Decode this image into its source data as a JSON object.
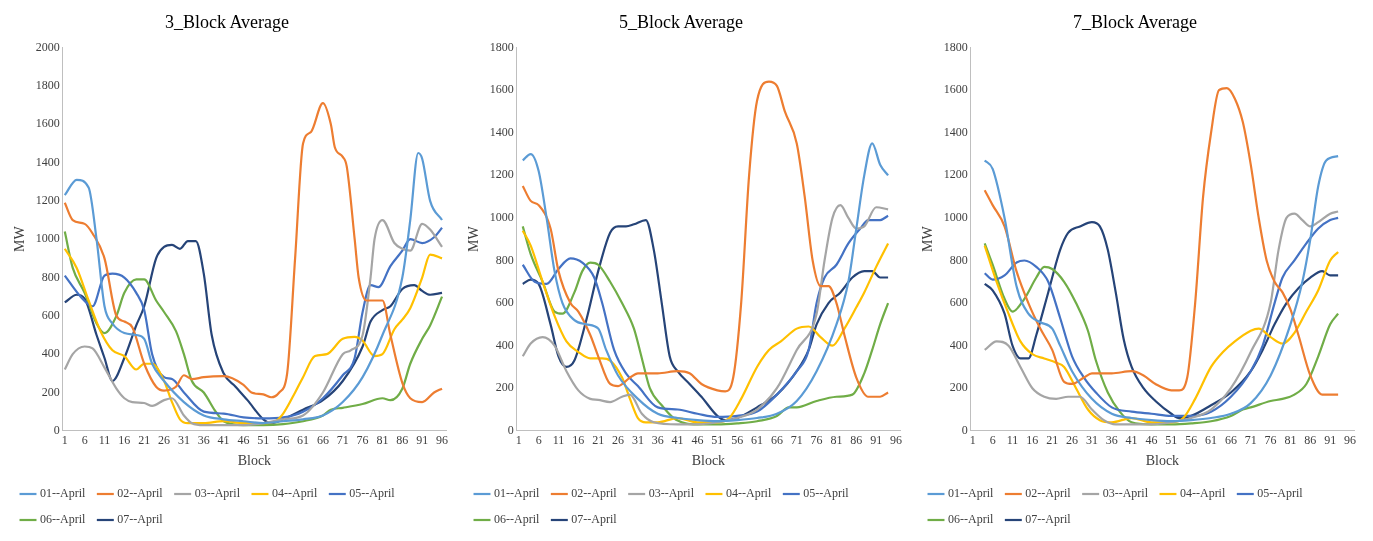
{
  "chart_data": [
    {
      "type": "line",
      "title": "3_Block Average",
      "xlabel": "Block",
      "ylabel": "MW",
      "xlim": [
        0.5,
        97
      ],
      "xticks": [
        1,
        6,
        11,
        16,
        21,
        26,
        31,
        36,
        41,
        46,
        51,
        56,
        61,
        66,
        71,
        76,
        81,
        86,
        91,
        96
      ],
      "ylim": [
        0,
        2000
      ],
      "yticks": [
        0,
        200,
        400,
        600,
        800,
        1000,
        1200,
        1400,
        1600,
        1800,
        2000
      ],
      "grid": false,
      "legend": "bottom",
      "marker": "none",
      "line_style": "solid",
      "series": [
        {
          "name": "01--April",
          "color": "#5b9bd5",
          "x": [
            1,
            4,
            7,
            9,
            11,
            13,
            16,
            19,
            21,
            23,
            26,
            31,
            36,
            41,
            46,
            51,
            56,
            61,
            66,
            71,
            76,
            81,
            86,
            88,
            90,
            91,
            93,
            96
          ],
          "values": [
            1230,
            1310,
            1270,
            1000,
            650,
            560,
            510,
            500,
            480,
            350,
            260,
            150,
            80,
            60,
            50,
            40,
            50,
            60,
            80,
            150,
            280,
            500,
            800,
            1100,
            1450,
            1420,
            1200,
            1100
          ]
        },
        {
          "name": "02--April",
          "color": "#ed7d31",
          "x": [
            1,
            3,
            6,
            8,
            11,
            14,
            16,
            18,
            21,
            24,
            26,
            29,
            31,
            33,
            36,
            41,
            46,
            48,
            51,
            53,
            55,
            57,
            59,
            61,
            63,
            66,
            68,
            69,
            71,
            72,
            74,
            75,
            77,
            79,
            81,
            83,
            86,
            88,
            91,
            94,
            96
          ],
          "values": [
            1190,
            1100,
            1080,
            1030,
            900,
            600,
            570,
            540,
            350,
            230,
            210,
            230,
            290,
            270,
            280,
            285,
            240,
            200,
            190,
            175,
            200,
            300,
            900,
            1500,
            1560,
            1710,
            1600,
            1480,
            1430,
            1380,
            1000,
            800,
            680,
            680,
            680,
            500,
            250,
            170,
            150,
            200,
            220
          ]
        },
        {
          "name": "03--April",
          "color": "#a5a5a5",
          "x": [
            1,
            3,
            6,
            8,
            11,
            14,
            16,
            18,
            21,
            23,
            26,
            28,
            31,
            33,
            36,
            41,
            46,
            51,
            56,
            61,
            66,
            71,
            73,
            76,
            78,
            79,
            81,
            84,
            86,
            88,
            91,
            93,
            96
          ],
          "values": [
            320,
            400,
            440,
            430,
            330,
            220,
            170,
            150,
            145,
            130,
            160,
            170,
            80,
            40,
            30,
            30,
            30,
            40,
            60,
            80,
            200,
            400,
            420,
            500,
            800,
            1000,
            1100,
            980,
            950,
            940,
            1080,
            1050,
            960
          ]
        },
        {
          "name": "04--April",
          "color": "#ffc000",
          "x": [
            1,
            4,
            7,
            10,
            13,
            16,
            19,
            21,
            23,
            26,
            28,
            30,
            32,
            36,
            41,
            46,
            51,
            54,
            56,
            59,
            61,
            64,
            67,
            71,
            74,
            76,
            79,
            81,
            84,
            86,
            88,
            91,
            93,
            96
          ],
          "values": [
            950,
            850,
            680,
            520,
            420,
            390,
            320,
            350,
            350,
            260,
            150,
            60,
            40,
            40,
            50,
            40,
            40,
            50,
            90,
            200,
            280,
            390,
            400,
            480,
            490,
            470,
            390,
            400,
            530,
            580,
            640,
            800,
            920,
            900
          ]
        },
        {
          "name": "05--April",
          "color": "#4472c4",
          "x": [
            1,
            5,
            8,
            11,
            13,
            16,
            19,
            21,
            23,
            26,
            28,
            31,
            36,
            41,
            46,
            51,
            56,
            61,
            66,
            71,
            74,
            76,
            78,
            80,
            83,
            86,
            88,
            91,
            94,
            96
          ],
          "values": [
            810,
            700,
            650,
            810,
            820,
            800,
            720,
            630,
            400,
            280,
            270,
            200,
            100,
            90,
            70,
            65,
            70,
            100,
            170,
            290,
            380,
            620,
            760,
            750,
            860,
            940,
            1000,
            980,
            1010,
            1060
          ]
        },
        {
          "name": "06--April",
          "color": "#70ad47",
          "x": [
            1,
            3,
            6,
            9,
            11,
            14,
            16,
            19,
            21,
            24,
            26,
            29,
            31,
            33,
            36,
            39,
            41,
            46,
            51,
            56,
            61,
            66,
            68,
            71,
            76,
            81,
            83,
            86,
            88,
            91,
            93,
            96
          ],
          "values": [
            1040,
            850,
            720,
            560,
            510,
            600,
            720,
            790,
            790,
            680,
            620,
            520,
            400,
            260,
            200,
            100,
            50,
            30,
            30,
            35,
            50,
            80,
            110,
            120,
            140,
            170,
            160,
            220,
            350,
            480,
            550,
            700
          ]
        },
        {
          "name": "07--April",
          "color": "#264478",
          "x": [
            1,
            4,
            6,
            9,
            11,
            13,
            16,
            19,
            21,
            24,
            26,
            28,
            30,
            32,
            34,
            36,
            38,
            41,
            44,
            47,
            51,
            53,
            56,
            61,
            66,
            71,
            76,
            78,
            81,
            83,
            86,
            89,
            91,
            93,
            96
          ],
          "values": [
            670,
            710,
            690,
            500,
            380,
            260,
            380,
            550,
            650,
            900,
            960,
            970,
            950,
            990,
            990,
            820,
            500,
            300,
            230,
            160,
            60,
            40,
            60,
            110,
            160,
            260,
            440,
            570,
            630,
            650,
            740,
            760,
            730,
            710,
            720
          ]
        }
      ]
    },
    {
      "type": "line",
      "title": "5_Block Average",
      "xlabel": "Block",
      "ylabel": "MW",
      "xlim": [
        0.5,
        97
      ],
      "xticks": [
        1,
        6,
        11,
        16,
        21,
        26,
        31,
        36,
        41,
        46,
        51,
        56,
        61,
        66,
        71,
        76,
        81,
        86,
        91,
        96
      ],
      "ylim": [
        0,
        1800
      ],
      "yticks": [
        0,
        200,
        400,
        600,
        800,
        1000,
        1200,
        1400,
        1600,
        1800
      ],
      "grid": false,
      "legend": "bottom",
      "marker": "none",
      "line_style": "solid",
      "series": [
        {
          "name": "01--April",
          "color": "#5b9bd5",
          "x": [
            2,
            4,
            6,
            8,
            10,
            12,
            15,
            18,
            21,
            23,
            26,
            31,
            36,
            41,
            46,
            51,
            56,
            61,
            66,
            71,
            76,
            81,
            84,
            86,
            88,
            90,
            92,
            94
          ],
          "values": [
            1270,
            1300,
            1220,
            1000,
            750,
            600,
            520,
            500,
            480,
            380,
            260,
            150,
            80,
            60,
            50,
            45,
            50,
            60,
            80,
            140,
            280,
            500,
            700,
            950,
            1200,
            1350,
            1250,
            1200
          ]
        },
        {
          "name": "02--April",
          "color": "#ed7d31",
          "x": [
            2,
            4,
            6,
            9,
            11,
            14,
            16,
            19,
            21,
            24,
            26,
            29,
            31,
            36,
            41,
            44,
            47,
            51,
            53,
            55,
            57,
            59,
            61,
            64,
            66,
            68,
            71,
            73,
            75,
            77,
            79,
            81,
            83,
            86,
            89,
            92,
            94
          ],
          "values": [
            1150,
            1080,
            1060,
            950,
            750,
            600,
            560,
            450,
            350,
            220,
            210,
            250,
            270,
            270,
            280,
            270,
            220,
            190,
            185,
            250,
            600,
            1200,
            1550,
            1640,
            1620,
            1500,
            1350,
            1100,
            800,
            680,
            680,
            600,
            450,
            250,
            160,
            160,
            180
          ]
        },
        {
          "name": "03--April",
          "color": "#a5a5a5",
          "x": [
            2,
            4,
            7,
            10,
            13,
            16,
            19,
            21,
            24,
            27,
            29,
            32,
            35,
            41,
            46,
            51,
            56,
            61,
            66,
            71,
            76,
            78,
            80,
            82,
            84,
            86,
            88,
            91,
            94
          ],
          "values": [
            350,
            410,
            440,
            400,
            280,
            190,
            150,
            145,
            135,
            160,
            170,
            80,
            40,
            30,
            30,
            40,
            60,
            100,
            200,
            380,
            550,
            800,
            1000,
            1060,
            1000,
            950,
            960,
            1050,
            1040
          ]
        },
        {
          "name": "04--April",
          "color": "#ffc000",
          "x": [
            2,
            4,
            7,
            10,
            13,
            16,
            19,
            22,
            24,
            27,
            29,
            31,
            33,
            36,
            41,
            46,
            51,
            54,
            57,
            61,
            64,
            67,
            71,
            74,
            77,
            80,
            83,
            86,
            88,
            91,
            94
          ],
          "values": [
            940,
            870,
            700,
            540,
            420,
            370,
            340,
            340,
            330,
            250,
            150,
            60,
            40,
            40,
            60,
            40,
            40,
            60,
            150,
            300,
            380,
            420,
            480,
            490,
            440,
            400,
            480,
            580,
            650,
            770,
            880
          ]
        },
        {
          "name": "05--April",
          "color": "#4472c4",
          "x": [
            2,
            5,
            8,
            11,
            14,
            17,
            20,
            22,
            25,
            28,
            31,
            36,
            41,
            46,
            51,
            56,
            61,
            66,
            71,
            74,
            76,
            78,
            81,
            84,
            87,
            89,
            92,
            94
          ],
          "values": [
            780,
            700,
            690,
            760,
            810,
            790,
            720,
            600,
            380,
            270,
            210,
            110,
            100,
            80,
            65,
            70,
            90,
            170,
            280,
            380,
            600,
            720,
            780,
            880,
            950,
            990,
            990,
            1010
          ]
        },
        {
          "name": "06--April",
          "color": "#70ad47",
          "x": [
            2,
            4,
            7,
            10,
            12,
            15,
            17,
            19,
            21,
            24,
            27,
            30,
            32,
            34,
            37,
            40,
            43,
            46,
            51,
            56,
            61,
            66,
            69,
            71,
            76,
            81,
            85,
            88,
            90,
            92,
            94
          ],
          "values": [
            960,
            830,
            700,
            560,
            550,
            650,
            750,
            790,
            780,
            700,
            600,
            480,
            340,
            200,
            120,
            60,
            35,
            30,
            30,
            35,
            45,
            70,
            110,
            110,
            140,
            160,
            170,
            270,
            380,
            500,
            600
          ]
        },
        {
          "name": "07--April",
          "color": "#264478",
          "x": [
            2,
            4,
            6,
            9,
            11,
            13,
            15,
            18,
            21,
            24,
            26,
            28,
            30,
            33,
            35,
            37,
            39,
            41,
            44,
            47,
            51,
            53,
            56,
            61,
            66,
            71,
            74,
            76,
            79,
            82,
            85,
            88,
            90,
            92,
            94
          ],
          "values": [
            690,
            710,
            690,
            500,
            350,
            300,
            330,
            520,
            750,
            930,
            960,
            960,
            970,
            990,
            850,
            600,
            350,
            280,
            220,
            160,
            70,
            50,
            60,
            110,
            170,
            280,
            380,
            500,
            600,
            650,
            720,
            750,
            750,
            720,
            720
          ]
        }
      ]
    },
    {
      "type": "line",
      "title": "7_Block Average",
      "xlabel": "Block",
      "ylabel": "MW",
      "xlim": [
        0.5,
        97
      ],
      "xticks": [
        1,
        6,
        11,
        16,
        21,
        26,
        31,
        36,
        41,
        46,
        51,
        56,
        61,
        66,
        71,
        76,
        81,
        86,
        91,
        96
      ],
      "ylim": [
        0,
        1800
      ],
      "yticks": [
        0,
        200,
        400,
        600,
        800,
        1000,
        1200,
        1400,
        1600,
        1800
      ],
      "grid": false,
      "legend": "bottom",
      "marker": "none",
      "line_style": "solid",
      "series": [
        {
          "name": "01--April",
          "color": "#5b9bd5",
          "x": [
            4,
            6,
            9,
            12,
            15,
            18,
            21,
            23,
            26,
            31,
            36,
            41,
            46,
            51,
            56,
            61,
            66,
            71,
            76,
            81,
            84,
            86,
            88,
            90,
            93
          ],
          "values": [
            1270,
            1230,
            1000,
            680,
            550,
            510,
            480,
            400,
            280,
            150,
            80,
            60,
            50,
            45,
            50,
            60,
            80,
            130,
            260,
            500,
            700,
            900,
            1150,
            1270,
            1290
          ]
        },
        {
          "name": "02--April",
          "color": "#ed7d31",
          "x": [
            4,
            6,
            9,
            12,
            15,
            18,
            21,
            24,
            26,
            29,
            31,
            36,
            41,
            44,
            47,
            51,
            53,
            55,
            57,
            59,
            61,
            63,
            65,
            67,
            69,
            71,
            73,
            75,
            77,
            79,
            81,
            83,
            86,
            89,
            91,
            93
          ],
          "values": [
            1130,
            1060,
            960,
            750,
            600,
            480,
            380,
            230,
            220,
            250,
            270,
            270,
            280,
            260,
            220,
            190,
            190,
            250,
            600,
            1100,
            1400,
            1600,
            1610,
            1560,
            1450,
            1250,
            1000,
            800,
            700,
            650,
            570,
            450,
            260,
            170,
            170,
            170
          ]
        },
        {
          "name": "03--April",
          "color": "#a5a5a5",
          "x": [
            4,
            7,
            10,
            13,
            16,
            19,
            22,
            25,
            28,
            31,
            34,
            37,
            41,
            46,
            51,
            56,
            61,
            66,
            71,
            76,
            78,
            80,
            82,
            84,
            86,
            88,
            91,
            93
          ],
          "values": [
            380,
            420,
            400,
            300,
            200,
            160,
            150,
            160,
            160,
            100,
            50,
            30,
            30,
            30,
            40,
            60,
            100,
            200,
            370,
            600,
            850,
            1000,
            1020,
            990,
            960,
            980,
            1020,
            1030
          ]
        },
        {
          "name": "04--April",
          "color": "#ffc000",
          "x": [
            4,
            7,
            10,
            13,
            16,
            19,
            22,
            24,
            27,
            30,
            33,
            36,
            41,
            46,
            51,
            54,
            57,
            61,
            64,
            67,
            71,
            73,
            76,
            79,
            82,
            85,
            88,
            91,
            93
          ],
          "values": [
            870,
            700,
            550,
            420,
            360,
            340,
            320,
            300,
            200,
            100,
            50,
            40,
            60,
            40,
            40,
            60,
            150,
            300,
            370,
            420,
            470,
            480,
            440,
            410,
            460,
            560,
            660,
            800,
            840
          ]
        },
        {
          "name": "05--April",
          "color": "#4472c4",
          "x": [
            4,
            6,
            9,
            12,
            14,
            17,
            20,
            23,
            26,
            29,
            32,
            36,
            41,
            46,
            51,
            56,
            61,
            66,
            71,
            74,
            77,
            79,
            82,
            85,
            88,
            91,
            93
          ],
          "values": [
            740,
            710,
            730,
            790,
            800,
            770,
            700,
            530,
            350,
            250,
            180,
            110,
            90,
            80,
            70,
            70,
            90,
            160,
            280,
            400,
            600,
            720,
            800,
            880,
            950,
            990,
            1000
          ]
        },
        {
          "name": "06--April",
          "color": "#70ad47",
          "x": [
            4,
            6,
            9,
            11,
            14,
            17,
            19,
            21,
            24,
            27,
            30,
            32,
            35,
            38,
            41,
            46,
            51,
            56,
            61,
            66,
            69,
            71,
            76,
            79,
            82,
            85,
            88,
            91,
            93
          ],
          "values": [
            880,
            780,
            620,
            560,
            620,
            720,
            770,
            760,
            700,
            600,
            470,
            330,
            180,
            90,
            40,
            30,
            30,
            35,
            45,
            70,
            100,
            110,
            140,
            150,
            170,
            220,
            350,
            500,
            550
          ]
        },
        {
          "name": "07--April",
          "color": "#264478",
          "x": [
            4,
            6,
            9,
            11,
            13,
            15,
            17,
            20,
            23,
            25,
            28,
            31,
            33,
            35,
            37,
            39,
            41,
            44,
            47,
            51,
            53,
            56,
            61,
            66,
            71,
            74,
            77,
            80,
            83,
            86,
            89,
            91,
            93
          ],
          "values": [
            690,
            660,
            550,
            400,
            340,
            340,
            450,
            650,
            850,
            930,
            960,
            980,
            960,
            850,
            650,
            430,
            300,
            200,
            140,
            80,
            60,
            70,
            120,
            180,
            280,
            380,
            500,
            600,
            670,
            720,
            750,
            730,
            730
          ]
        }
      ]
    }
  ]
}
